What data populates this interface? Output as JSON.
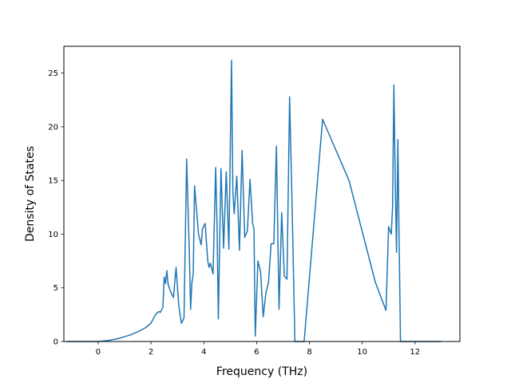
{
  "chart_data": {
    "type": "line",
    "title": "",
    "xlabel": "Frequency (THz)",
    "ylabel": "Density of States",
    "xlim": [
      -1.3,
      13.7
    ],
    "ylim": [
      0,
      27.5
    ],
    "xticks": [
      0,
      2,
      4,
      6,
      8,
      10,
      12
    ],
    "yticks": [
      0,
      5,
      10,
      15,
      20,
      25
    ],
    "grid": false,
    "legend": "none",
    "line_color": "#1f77b4",
    "series": [
      {
        "x": [
          -1.2,
          -0.6,
          0.0,
          0.4,
          0.8,
          1.2,
          1.5,
          1.8,
          2.0,
          2.1,
          2.2,
          2.3,
          2.35,
          2.45,
          2.5,
          2.55,
          2.6,
          2.65,
          2.75,
          2.85,
          2.95,
          3.05,
          3.15,
          3.25,
          3.35,
          3.45,
          3.5,
          3.55,
          3.6,
          3.65,
          3.7,
          3.8,
          3.9,
          3.95,
          4.05,
          4.15,
          4.2,
          4.25,
          4.35,
          4.45,
          4.5,
          4.55,
          4.65,
          4.75,
          4.85,
          4.95,
          5.05,
          5.1,
          5.15,
          5.25,
          5.35,
          5.45,
          5.55,
          5.65,
          5.75,
          5.85,
          5.9,
          5.95,
          6.05,
          6.15,
          6.25,
          6.35,
          6.45,
          6.55,
          6.65,
          6.75,
          6.85,
          6.95,
          7.05,
          7.15,
          7.25,
          7.35,
          7.45,
          7.5,
          7.55,
          7.65,
          7.75,
          7.8,
          8.5,
          9.5,
          10.5,
          10.9,
          11.0,
          11.1,
          11.15,
          11.2,
          11.25,
          11.3,
          11.35,
          11.4,
          11.45,
          11.5,
          11.55,
          11.6,
          11.65,
          11.7,
          11.75,
          11.8,
          11.85,
          12.0,
          13.0
        ],
        "y": [
          0,
          0,
          0,
          0.1,
          0.3,
          0.6,
          0.9,
          1.3,
          1.7,
          2.2,
          2.6,
          2.8,
          2.7,
          3.2,
          6.0,
          5.4,
          6.6,
          5.3,
          4.6,
          4.1,
          6.9,
          3.4,
          1.7,
          2.2,
          17.0,
          8.5,
          3.0,
          5.5,
          6.3,
          14.5,
          13.0,
          10.0,
          9.0,
          10.5,
          11.0,
          7.5,
          6.9,
          7.3,
          6.3,
          16.2,
          11.0,
          2.1,
          16.1,
          8.7,
          15.8,
          8.6,
          26.2,
          14.0,
          11.9,
          15.4,
          8.5,
          17.8,
          9.7,
          10.3,
          15.1,
          11.0,
          10.5,
          0.5,
          7.5,
          6.5,
          2.3,
          4.5,
          5.5,
          9.1,
          9.1,
          18.2,
          3.0,
          12.0,
          6.1,
          5.8,
          22.8,
          12.0,
          0,
          0,
          0,
          0,
          0,
          0,
          20.7,
          15.0,
          5.5,
          2.9,
          10.7,
          10.0,
          12.5,
          23.9,
          15.0,
          8.3,
          18.8,
          9.0,
          0,
          0,
          0,
          0,
          0,
          0,
          0,
          0,
          0,
          0,
          0
        ]
      }
    ]
  }
}
